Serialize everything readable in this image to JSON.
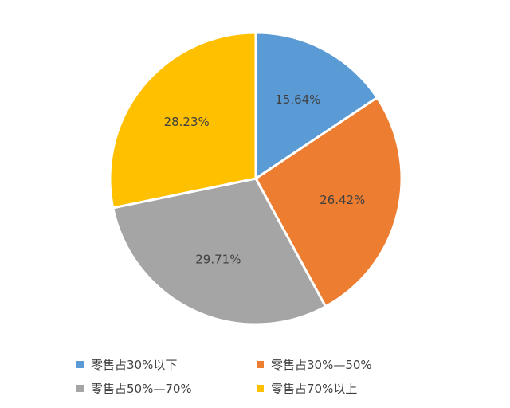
{
  "chart_data": {
    "type": "pie",
    "title": "",
    "categories": [
      "零售占30%以下",
      "零售占30%—50%",
      "零售占50%—70%",
      "零售占70%以上"
    ],
    "values": [
      15.64,
      26.42,
      29.71,
      28.23
    ],
    "labels": [
      "15.64%",
      "26.42%",
      "29.71%",
      "28.23%"
    ],
    "colors": [
      "#5b9bd5",
      "#ed7d31",
      "#a5a5a5",
      "#ffc000"
    ],
    "start_angle": "12 o'clock",
    "direction": "clockwise",
    "legend_position": "bottom"
  }
}
